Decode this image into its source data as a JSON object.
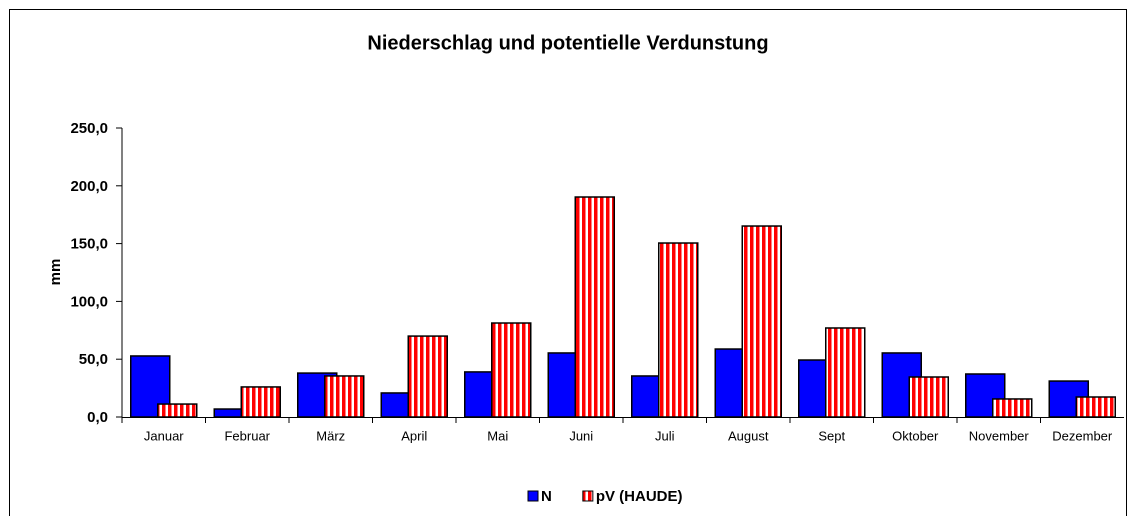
{
  "chart_data": {
    "type": "bar",
    "title": "Niederschlag und potentielle Verdunstung",
    "y_label": "mm",
    "categories": [
      "Januar",
      "Februar",
      "März",
      "April",
      "Mai",
      "Juni",
      "Juli",
      "August",
      "Sept",
      "Oktober",
      "November",
      "Dezember"
    ],
    "series": [
      {
        "name": "N",
        "color": "#0000ff",
        "values": [
          52.8,
          6.9,
          38,
          20.8,
          39,
          55.4,
          35.5,
          58.8,
          49.3,
          55.4,
          37.2,
          31.1
        ]
      },
      {
        "name": "pV (HAUDE)",
        "color": "#ff0000",
        "pattern": "vertical-stripes",
        "values": [
          11.2,
          26,
          35.5,
          70,
          81.3,
          190.3,
          150.5,
          165.2,
          77,
          34.6,
          15.6,
          17.3
        ]
      }
    ],
    "ylim": [
      0,
      250
    ],
    "yticks": [
      {
        "value": 0,
        "label": "0,0"
      },
      {
        "value": 50,
        "label": "50,0"
      },
      {
        "value": 100,
        "label": "100,0"
      },
      {
        "value": 150,
        "label": "150,0"
      },
      {
        "value": 200,
        "label": "200,0"
      },
      {
        "value": 250,
        "label": "250,0"
      }
    ],
    "legend": "bottom"
  }
}
